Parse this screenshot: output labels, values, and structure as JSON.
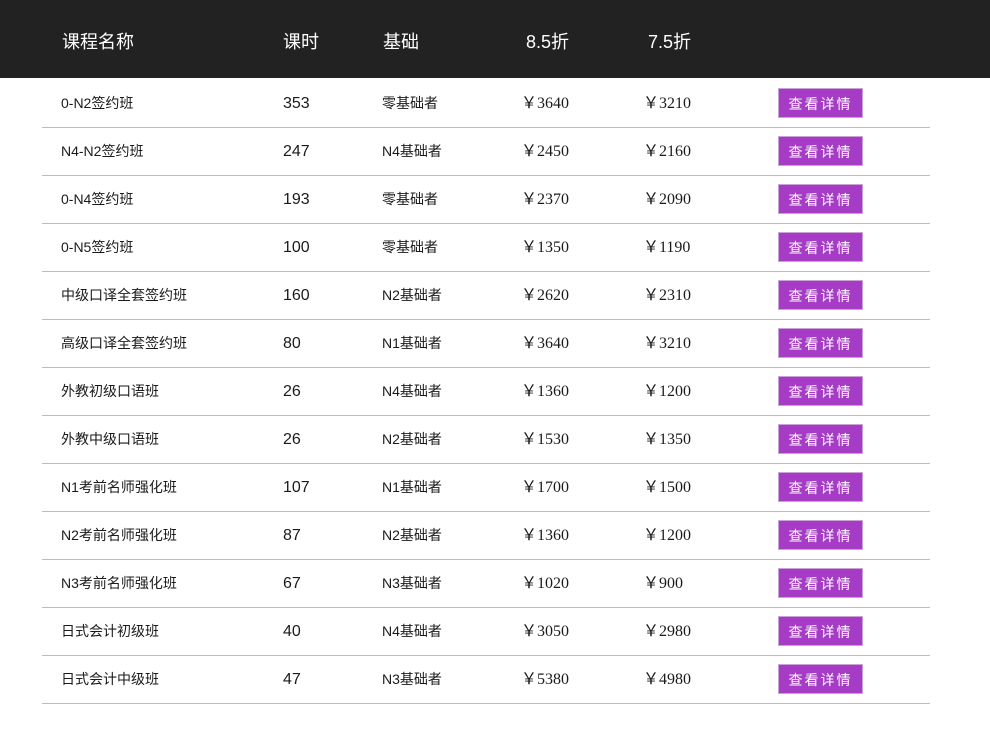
{
  "header": {
    "name": "课程名称",
    "hours": "课时",
    "base": "基础",
    "price_85": "8.5折",
    "price_75": "7.5折"
  },
  "detail_label": "查看详情",
  "accent_color": "#a63cc6",
  "courses": [
    {
      "name": "0-N2签约班",
      "hours": "353",
      "base": "零基础者",
      "price_85": "￥3640",
      "price_75": "￥3210"
    },
    {
      "name": "N4-N2签约班",
      "hours": "247",
      "base": "N4基础者",
      "price_85": "￥2450",
      "price_75": "￥2160"
    },
    {
      "name": "0-N4签约班",
      "hours": "193",
      "base": "零基础者",
      "price_85": "￥2370",
      "price_75": "￥2090"
    },
    {
      "name": "0-N5签约班",
      "hours": "100",
      "base": "零基础者",
      "price_85": "￥1350",
      "price_75": "￥1190"
    },
    {
      "name": "中级口译全套签约班",
      "hours": "160",
      "base": "N2基础者",
      "price_85": "￥2620",
      "price_75": "￥2310"
    },
    {
      "name": "高级口译全套签约班",
      "hours": "80",
      "base": "N1基础者",
      "price_85": "￥3640",
      "price_75": "￥3210"
    },
    {
      "name": "外教初级口语班",
      "hours": "26",
      "base": "N4基础者",
      "price_85": "￥1360",
      "price_75": "￥1200"
    },
    {
      "name": "外教中级口语班",
      "hours": "26",
      "base": "N2基础者",
      "price_85": "￥1530",
      "price_75": "￥1350"
    },
    {
      "name": "N1考前名师强化班",
      "hours": "107",
      "base": "N1基础者",
      "price_85": "￥1700",
      "price_75": "￥1500"
    },
    {
      "name": "N2考前名师强化班",
      "hours": "87",
      "base": "N2基础者",
      "price_85": "￥1360",
      "price_75": "￥1200"
    },
    {
      "name": "N3考前名师强化班",
      "hours": "67",
      "base": "N3基础者",
      "price_85": "￥1020",
      "price_75": "￥900"
    },
    {
      "name": "日式会计初级班",
      "hours": "40",
      "base": "N4基础者",
      "price_85": "￥3050",
      "price_75": "￥2980"
    },
    {
      "name": "日式会计中级班",
      "hours": "47",
      "base": "N3基础者",
      "price_85": "￥5380",
      "price_75": "￥4980"
    }
  ]
}
